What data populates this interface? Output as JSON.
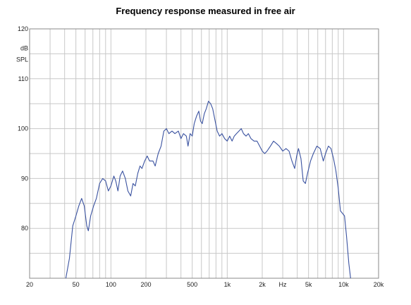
{
  "chart_data": {
    "type": "line",
    "title": "Frequency response measured in free air",
    "x_scale": "log",
    "xlim": [
      20,
      20000
    ],
    "ylim": [
      70,
      120
    ],
    "y_unit_label": [
      "dB",
      "SPL"
    ],
    "x_unit_label": "Hz",
    "x_ticks": [
      {
        "v": 20,
        "label": "20"
      },
      {
        "v": 50,
        "label": "50"
      },
      {
        "v": 100,
        "label": "100"
      },
      {
        "v": 200,
        "label": "200"
      },
      {
        "v": 500,
        "label": "500"
      },
      {
        "v": 1000,
        "label": "1k"
      },
      {
        "v": 2000,
        "label": "2k"
      },
      {
        "v": 5000,
        "label": "5k"
      },
      {
        "v": 10000,
        "label": "10k"
      },
      {
        "v": 20000,
        "label": "20k"
      }
    ],
    "y_ticks": [
      {
        "v": 80,
        "label": "80"
      },
      {
        "v": 90,
        "label": "90"
      },
      {
        "v": 100,
        "label": "100"
      },
      {
        "v": 110,
        "label": "110"
      },
      {
        "v": 120,
        "label": "120"
      }
    ],
    "grid": true,
    "series": [
      {
        "color": "#3a52a0",
        "points": [
          [
            41,
            70
          ],
          [
            44,
            74
          ],
          [
            47,
            80.5
          ],
          [
            50,
            82.5
          ],
          [
            53,
            84.5
          ],
          [
            56,
            86
          ],
          [
            59,
            84.5
          ],
          [
            62,
            80.5
          ],
          [
            64,
            79.5
          ],
          [
            67,
            82.5
          ],
          [
            71,
            84.5
          ],
          [
            75,
            86
          ],
          [
            80,
            89
          ],
          [
            85,
            90
          ],
          [
            90,
            89.5
          ],
          [
            95,
            87.5
          ],
          [
            100,
            88.5
          ],
          [
            106,
            90.5
          ],
          [
            110,
            89.5
          ],
          [
            115,
            87.5
          ],
          [
            120,
            90.5
          ],
          [
            126,
            91.5
          ],
          [
            133,
            90
          ],
          [
            140,
            87.5
          ],
          [
            148,
            86.5
          ],
          [
            155,
            89
          ],
          [
            162,
            88.5
          ],
          [
            170,
            91
          ],
          [
            178,
            92.5
          ],
          [
            185,
            92
          ],
          [
            195,
            93.5
          ],
          [
            205,
            94.5
          ],
          [
            215,
            93.5
          ],
          [
            230,
            93.5
          ],
          [
            240,
            92.5
          ],
          [
            255,
            95
          ],
          [
            270,
            96.5
          ],
          [
            285,
            99.5
          ],
          [
            300,
            100
          ],
          [
            315,
            99
          ],
          [
            335,
            99.5
          ],
          [
            355,
            99
          ],
          [
            380,
            99.5
          ],
          [
            400,
            98
          ],
          [
            420,
            99
          ],
          [
            445,
            98.5
          ],
          [
            460,
            96.5
          ],
          [
            480,
            99
          ],
          [
            500,
            98.5
          ],
          [
            520,
            101
          ],
          [
            545,
            102.5
          ],
          [
            570,
            103.5
          ],
          [
            590,
            101.5
          ],
          [
            610,
            101
          ],
          [
            635,
            103
          ],
          [
            660,
            104
          ],
          [
            690,
            105.5
          ],
          [
            720,
            105
          ],
          [
            750,
            104
          ],
          [
            780,
            102
          ],
          [
            820,
            99.5
          ],
          [
            860,
            98.5
          ],
          [
            900,
            99
          ],
          [
            950,
            98
          ],
          [
            1000,
            97.5
          ],
          [
            1050,
            98.5
          ],
          [
            1100,
            97.5
          ],
          [
            1150,
            98.5
          ],
          [
            1200,
            99
          ],
          [
            1260,
            99.5
          ],
          [
            1320,
            100
          ],
          [
            1380,
            99
          ],
          [
            1450,
            98.5
          ],
          [
            1520,
            99
          ],
          [
            1600,
            98
          ],
          [
            1700,
            97.5
          ],
          [
            1800,
            97.5
          ],
          [
            1900,
            96.5
          ],
          [
            2000,
            95.5
          ],
          [
            2100,
            95
          ],
          [
            2200,
            95.5
          ],
          [
            2350,
            96.5
          ],
          [
            2500,
            97.5
          ],
          [
            2650,
            97
          ],
          [
            2800,
            96.5
          ],
          [
            3000,
            95.5
          ],
          [
            3200,
            96
          ],
          [
            3400,
            95.5
          ],
          [
            3600,
            93.5
          ],
          [
            3800,
            92
          ],
          [
            3950,
            94.5
          ],
          [
            4100,
            96
          ],
          [
            4300,
            94
          ],
          [
            4500,
            89.5
          ],
          [
            4700,
            89
          ],
          [
            4900,
            91
          ],
          [
            5200,
            93.5
          ],
          [
            5500,
            95
          ],
          [
            5900,
            96.5
          ],
          [
            6300,
            96
          ],
          [
            6700,
            93.5
          ],
          [
            7000,
            95
          ],
          [
            7400,
            96.5
          ],
          [
            7800,
            96
          ],
          [
            8200,
            94
          ],
          [
            8600,
            91.5
          ],
          [
            9000,
            88
          ],
          [
            9400,
            83.5
          ],
          [
            9800,
            83
          ],
          [
            10200,
            82.5
          ],
          [
            10600,
            78.5
          ],
          [
            11100,
            73
          ],
          [
            11500,
            70
          ]
        ]
      }
    ]
  }
}
